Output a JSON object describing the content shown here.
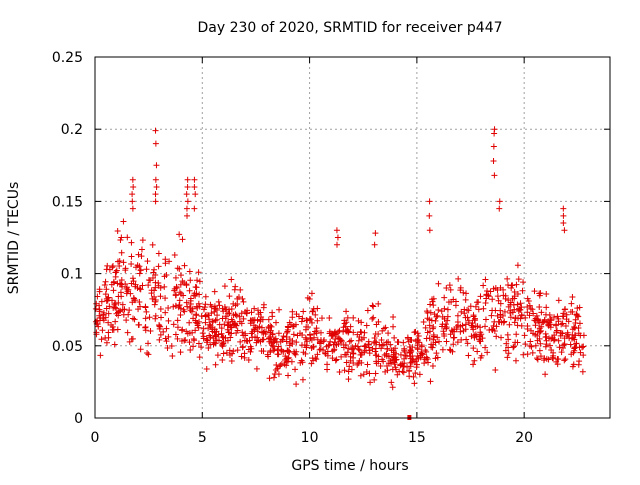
{
  "chart_data": {
    "type": "scatter",
    "title": "Day 230 of 2020, SRMTID for receiver p447",
    "xlabel": "GPS time / hours",
    "ylabel": "SRMTID / TECUs",
    "xlim": [
      0,
      24
    ],
    "ylim": [
      0,
      0.25
    ],
    "x_ticks": [
      0,
      5,
      10,
      15,
      20
    ],
    "x_tick_labels": [
      "0",
      "5",
      "10",
      "15",
      "20"
    ],
    "y_ticks": [
      0,
      0.05,
      0.1,
      0.15,
      0.2,
      0.25
    ],
    "y_tick_labels": [
      "0",
      "0.05",
      "0.1",
      "0.15",
      "0.2",
      "0.25"
    ],
    "grid": true,
    "marker": "plus",
    "color": "#e00000",
    "series": [
      {
        "name": "SRMTID",
        "profile_hours": [
          0.0,
          0.5,
          1.0,
          1.5,
          2.0,
          2.5,
          3.0,
          3.5,
          4.0,
          4.5,
          5.0,
          5.5,
          6.0,
          6.5,
          7.0,
          7.5,
          8.0,
          8.5,
          9.0,
          9.5,
          10.0,
          10.5,
          11.0,
          11.5,
          12.0,
          12.5,
          13.0,
          13.5,
          14.0,
          14.5,
          15.0,
          15.5,
          16.0,
          16.5,
          17.0,
          17.5,
          18.0,
          18.5,
          19.0,
          19.5,
          20.0,
          20.5,
          21.0,
          21.5,
          22.0,
          22.5,
          22.8
        ],
        "profile_center": [
          0.065,
          0.075,
          0.085,
          0.09,
          0.09,
          0.085,
          0.082,
          0.08,
          0.08,
          0.075,
          0.065,
          0.062,
          0.065,
          0.065,
          0.062,
          0.06,
          0.055,
          0.05,
          0.052,
          0.055,
          0.058,
          0.055,
          0.052,
          0.05,
          0.05,
          0.052,
          0.052,
          0.05,
          0.045,
          0.04,
          0.045,
          0.055,
          0.062,
          0.065,
          0.065,
          0.065,
          0.068,
          0.07,
          0.072,
          0.072,
          0.07,
          0.065,
          0.06,
          0.058,
          0.06,
          0.058,
          0.048
        ],
        "profile_spread": [
          0.02,
          0.025,
          0.03,
          0.035,
          0.035,
          0.035,
          0.035,
          0.03,
          0.035,
          0.03,
          0.025,
          0.022,
          0.022,
          0.025,
          0.022,
          0.02,
          0.02,
          0.02,
          0.02,
          0.022,
          0.025,
          0.022,
          0.02,
          0.02,
          0.02,
          0.022,
          0.022,
          0.02,
          0.018,
          0.015,
          0.02,
          0.022,
          0.022,
          0.022,
          0.022,
          0.022,
          0.025,
          0.028,
          0.028,
          0.028,
          0.025,
          0.022,
          0.022,
          0.022,
          0.025,
          0.022,
          0.018
        ],
        "peaks": [
          {
            "x": 2.85,
            "y": [
              0.199,
              0.19,
              0.175,
              0.165,
              0.16,
              0.155,
              0.15
            ]
          },
          {
            "x": 1.75,
            "y": [
              0.165,
              0.16,
              0.155,
              0.15,
              0.145
            ]
          },
          {
            "x": 4.3,
            "y": [
              0.165,
              0.16,
              0.155,
              0.15,
              0.145,
              0.14
            ]
          },
          {
            "x": 4.65,
            "y": [
              0.165,
              0.16,
              0.155,
              0.145
            ]
          },
          {
            "x": 18.6,
            "y": [
              0.2,
              0.197,
              0.188,
              0.178,
              0.168
            ]
          },
          {
            "x": 18.85,
            "y": [
              0.15,
              0.145
            ]
          },
          {
            "x": 15.6,
            "y": [
              0.15,
              0.14,
              0.13
            ]
          },
          {
            "x": 21.85,
            "y": [
              0.145,
              0.14,
              0.135,
              0.13
            ]
          },
          {
            "x": 13.05,
            "y": [
              0.128,
              0.12
            ]
          },
          {
            "x": 11.3,
            "y": [
              0.13,
              0.125,
              0.12
            ]
          }
        ],
        "markers_at_zero": [
          {
            "x": 14.65,
            "y": 0.0
          }
        ]
      }
    ]
  }
}
